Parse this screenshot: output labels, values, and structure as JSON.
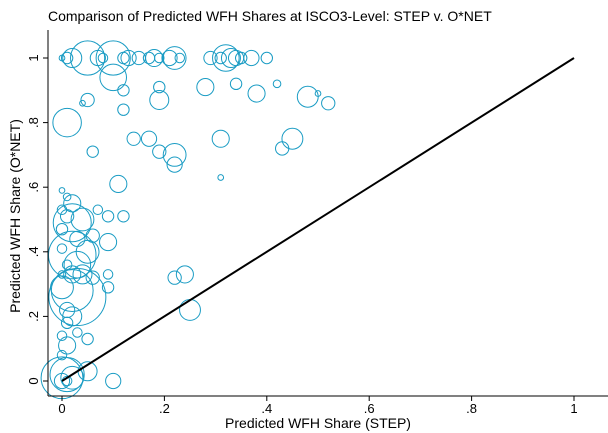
{
  "chart_data": {
    "type": "scatter",
    "title": "Comparison of Predicted WFH Shares at ISCO3-Level: STEP v. O*NET",
    "xlabel": "Predicted WFH Share (STEP)",
    "ylabel": "Predicted WFH Share (O*NET)",
    "xlim": [
      0,
      1
    ],
    "ylim": [
      0,
      1
    ],
    "x_ticks": [
      0,
      0.2,
      0.4,
      0.6,
      0.8,
      1
    ],
    "x_tick_labels": [
      "0",
      ".2",
      ".4",
      ".6",
      ".8",
      "1"
    ],
    "y_ticks": [
      0,
      0.2,
      0.4,
      0.6,
      0.8,
      1
    ],
    "y_tick_labels": [
      "0",
      ".2",
      ".4",
      ".6",
      ".8",
      "1"
    ],
    "grid": false,
    "legend": "none",
    "marker": "hollow-circle-weighted",
    "marker_color": "#1a9cc4",
    "reference_line": {
      "from": [
        0,
        0
      ],
      "to": [
        1,
        1
      ],
      "color": "#000000"
    },
    "points": [
      {
        "x": 0.0,
        "y": 1.0,
        "w": 3
      },
      {
        "x": 0.01,
        "y": 1.0,
        "w": 6
      },
      {
        "x": 0.02,
        "y": 1.0,
        "w": 10
      },
      {
        "x": 0.05,
        "y": 1.0,
        "w": 18
      },
      {
        "x": 0.07,
        "y": 1.0,
        "w": 8
      },
      {
        "x": 0.08,
        "y": 1.0,
        "w": 5
      },
      {
        "x": 0.1,
        "y": 1.0,
        "w": 18
      },
      {
        "x": 0.12,
        "y": 1.0,
        "w": 6
      },
      {
        "x": 0.13,
        "y": 1.0,
        "w": 8
      },
      {
        "x": 0.15,
        "y": 1.0,
        "w": 7
      },
      {
        "x": 0.17,
        "y": 1.0,
        "w": 6
      },
      {
        "x": 0.18,
        "y": 1.0,
        "w": 9
      },
      {
        "x": 0.19,
        "y": 1.0,
        "w": 5
      },
      {
        "x": 0.21,
        "y": 1.0,
        "w": 8
      },
      {
        "x": 0.22,
        "y": 1.0,
        "w": 12
      },
      {
        "x": 0.23,
        "y": 1.0,
        "w": 5
      },
      {
        "x": 0.29,
        "y": 1.0,
        "w": 7
      },
      {
        "x": 0.31,
        "y": 1.0,
        "w": 6
      },
      {
        "x": 0.32,
        "y": 1.0,
        "w": 14
      },
      {
        "x": 0.33,
        "y": 1.0,
        "w": 10
      },
      {
        "x": 0.34,
        "y": 1.0,
        "w": 8
      },
      {
        "x": 0.35,
        "y": 1.0,
        "w": 6
      },
      {
        "x": 0.37,
        "y": 1.0,
        "w": 8
      },
      {
        "x": 0.4,
        "y": 1.0,
        "w": 6
      },
      {
        "x": 0.05,
        "y": 0.87,
        "w": 7
      },
      {
        "x": 0.04,
        "y": 0.86,
        "w": 3
      },
      {
        "x": 0.12,
        "y": 0.9,
        "w": 6
      },
      {
        "x": 0.1,
        "y": 0.94,
        "w": 14
      },
      {
        "x": 0.19,
        "y": 0.91,
        "w": 6
      },
      {
        "x": 0.28,
        "y": 0.91,
        "w": 9
      },
      {
        "x": 0.34,
        "y": 0.92,
        "w": 6
      },
      {
        "x": 0.38,
        "y": 0.89,
        "w": 9
      },
      {
        "x": 0.42,
        "y": 0.92,
        "w": 4
      },
      {
        "x": 0.48,
        "y": 0.88,
        "w": 11
      },
      {
        "x": 0.5,
        "y": 0.89,
        "w": 3
      },
      {
        "x": 0.52,
        "y": 0.86,
        "w": 7
      },
      {
        "x": 0.19,
        "y": 0.87,
        "w": 10
      },
      {
        "x": 0.12,
        "y": 0.84,
        "w": 6
      },
      {
        "x": 0.01,
        "y": 0.8,
        "w": 15
      },
      {
        "x": 0.14,
        "y": 0.75,
        "w": 7
      },
      {
        "x": 0.17,
        "y": 0.75,
        "w": 8
      },
      {
        "x": 0.19,
        "y": 0.71,
        "w": 7
      },
      {
        "x": 0.22,
        "y": 0.7,
        "w": 12
      },
      {
        "x": 0.22,
        "y": 0.67,
        "w": 8
      },
      {
        "x": 0.31,
        "y": 0.75,
        "w": 9
      },
      {
        "x": 0.45,
        "y": 0.75,
        "w": 11
      },
      {
        "x": 0.43,
        "y": 0.72,
        "w": 7
      },
      {
        "x": 0.06,
        "y": 0.71,
        "w": 6
      },
      {
        "x": 0.31,
        "y": 0.63,
        "w": 3
      },
      {
        "x": 0.11,
        "y": 0.61,
        "w": 9
      },
      {
        "x": 0.0,
        "y": 0.59,
        "w": 3
      },
      {
        "x": 0.01,
        "y": 0.57,
        "w": 4
      },
      {
        "x": 0.02,
        "y": 0.55,
        "w": 9
      },
      {
        "x": 0.0,
        "y": 0.53,
        "w": 5
      },
      {
        "x": 0.01,
        "y": 0.51,
        "w": 7
      },
      {
        "x": 0.02,
        "y": 0.49,
        "w": 20
      },
      {
        "x": 0.04,
        "y": 0.5,
        "w": 12
      },
      {
        "x": 0.07,
        "y": 0.53,
        "w": 5
      },
      {
        "x": 0.09,
        "y": 0.51,
        "w": 6
      },
      {
        "x": 0.12,
        "y": 0.51,
        "w": 6
      },
      {
        "x": 0.0,
        "y": 0.47,
        "w": 6
      },
      {
        "x": 0.03,
        "y": 0.44,
        "w": 8
      },
      {
        "x": 0.06,
        "y": 0.45,
        "w": 7
      },
      {
        "x": 0.09,
        "y": 0.43,
        "w": 9
      },
      {
        "x": 0.0,
        "y": 0.41,
        "w": 5
      },
      {
        "x": 0.02,
        "y": 0.39,
        "w": 25
      },
      {
        "x": 0.05,
        "y": 0.4,
        "w": 12
      },
      {
        "x": 0.01,
        "y": 0.36,
        "w": 5
      },
      {
        "x": 0.03,
        "y": 0.36,
        "w": 14
      },
      {
        "x": 0.02,
        "y": 0.33,
        "w": 9
      },
      {
        "x": 0.0,
        "y": 0.33,
        "w": 4
      },
      {
        "x": 0.04,
        "y": 0.33,
        "w": 10
      },
      {
        "x": 0.06,
        "y": 0.32,
        "w": 7
      },
      {
        "x": 0.09,
        "y": 0.33,
        "w": 5
      },
      {
        "x": 0.09,
        "y": 0.29,
        "w": 6
      },
      {
        "x": 0.0,
        "y": 0.29,
        "w": 12
      },
      {
        "x": 0.02,
        "y": 0.28,
        "w": 22
      },
      {
        "x": 0.03,
        "y": 0.26,
        "w": 30
      },
      {
        "x": 0.01,
        "y": 0.22,
        "w": 8
      },
      {
        "x": 0.02,
        "y": 0.2,
        "w": 10
      },
      {
        "x": 0.01,
        "y": 0.18,
        "w": 6
      },
      {
        "x": 0.03,
        "y": 0.15,
        "w": 5
      },
      {
        "x": 0.0,
        "y": 0.14,
        "w": 5
      },
      {
        "x": 0.01,
        "y": 0.11,
        "w": 9
      },
      {
        "x": 0.05,
        "y": 0.13,
        "w": 6
      },
      {
        "x": 0.0,
        "y": 0.08,
        "w": 5
      },
      {
        "x": 0.22,
        "y": 0.32,
        "w": 7
      },
      {
        "x": 0.24,
        "y": 0.33,
        "w": 9
      },
      {
        "x": 0.25,
        "y": 0.22,
        "w": 11
      },
      {
        "x": 0.0,
        "y": 0.01,
        "w": 22
      },
      {
        "x": 0.01,
        "y": 0.02,
        "w": 18
      },
      {
        "x": 0.02,
        "y": 0.01,
        "w": 12
      },
      {
        "x": 0.0,
        "y": 0.0,
        "w": 8
      },
      {
        "x": 0.01,
        "y": 0.0,
        "w": 5
      },
      {
        "x": 0.05,
        "y": 0.03,
        "w": 10
      },
      {
        "x": 0.1,
        "y": 0.0,
        "w": 8
      }
    ]
  }
}
